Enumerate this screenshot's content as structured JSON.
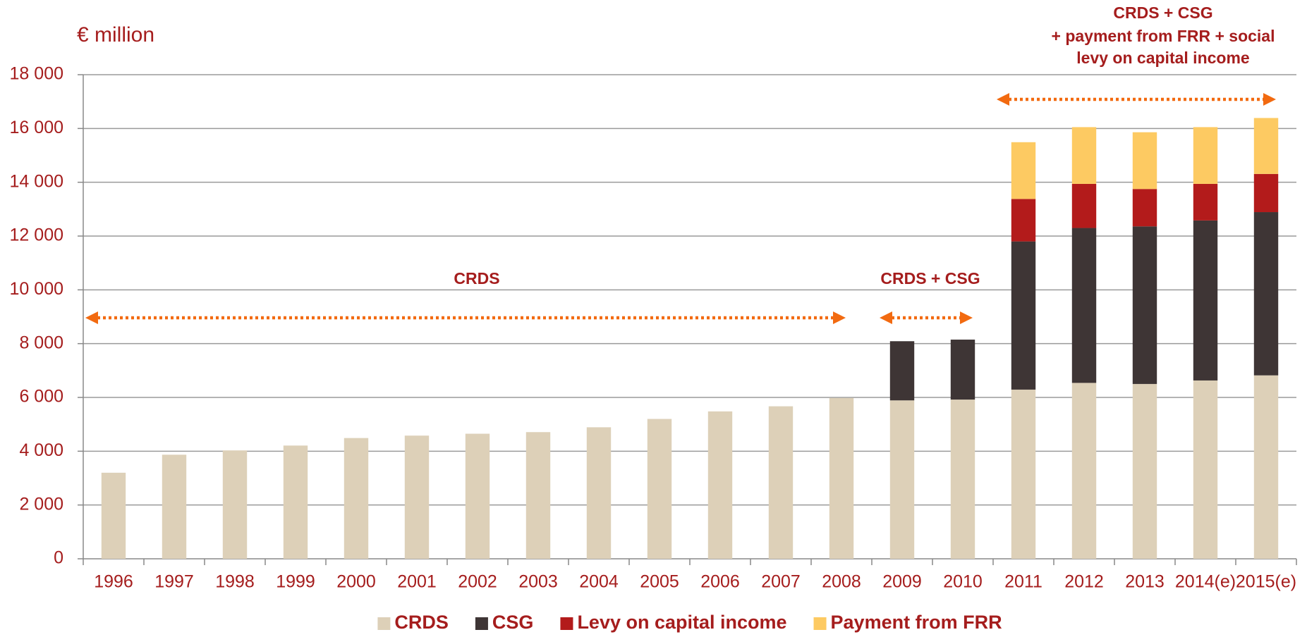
{
  "chart_data": {
    "type": "stacked_bar",
    "y_axis_label": "€ million",
    "categories": [
      "1996",
      "1997",
      "1998",
      "1999",
      "2000",
      "2001",
      "2002",
      "2003",
      "2004",
      "2005",
      "2006",
      "2007",
      "2008",
      "2009",
      "2010",
      "2011",
      "2012",
      "2013",
      "2014(e)",
      "2015(e)"
    ],
    "series": [
      {
        "name": "CRDS",
        "color": "#ddd0b8",
        "values": [
          3200,
          3870,
          4030,
          4210,
          4490,
          4580,
          4650,
          4710,
          4890,
          5200,
          5480,
          5670,
          5980,
          5890,
          5920,
          6290,
          6540,
          6500,
          6630,
          6820
        ]
      },
      {
        "name": "CSG",
        "color": "#3e3535",
        "values": [
          null,
          null,
          null,
          null,
          null,
          null,
          null,
          null,
          null,
          null,
          null,
          null,
          null,
          2200,
          2230,
          5510,
          5760,
          5860,
          5950,
          6070
        ]
      },
      {
        "name": "Levy on capital income",
        "color": "#b31b1b",
        "values": [
          null,
          null,
          null,
          null,
          null,
          null,
          null,
          null,
          null,
          null,
          null,
          null,
          null,
          null,
          null,
          1580,
          1640,
          1390,
          1360,
          1420
        ]
      },
      {
        "name": "Payment from FRR",
        "color": "#fdca62",
        "values": [
          null,
          null,
          null,
          null,
          null,
          null,
          null,
          null,
          null,
          null,
          null,
          null,
          null,
          null,
          null,
          2110,
          2110,
          2110,
          2110,
          2080
        ]
      }
    ],
    "ylim": [
      0,
      18000
    ],
    "yticks": [
      0,
      {
        "value": 2000,
        "label": "2 000"
      },
      {
        "value": 4000,
        "label": "4 000"
      },
      {
        "value": 6000,
        "label": "6 000"
      },
      {
        "value": 8000,
        "label": "8 000"
      },
      {
        "value": 10000,
        "label": "10 000"
      },
      {
        "value": 12000,
        "label": "12 000"
      },
      {
        "value": 14000,
        "label": "14 000"
      },
      {
        "value": 16000,
        "label": "16 000"
      },
      {
        "value": 18000,
        "label": "18 000"
      }
    ],
    "grid": true,
    "legend": "bottom",
    "annotations": [
      "CRDS",
      "CRDS + CSG",
      [
        "CRDS + CSG",
        "+ payment from FRR + social",
        "levy on capital income"
      ]
    ]
  }
}
